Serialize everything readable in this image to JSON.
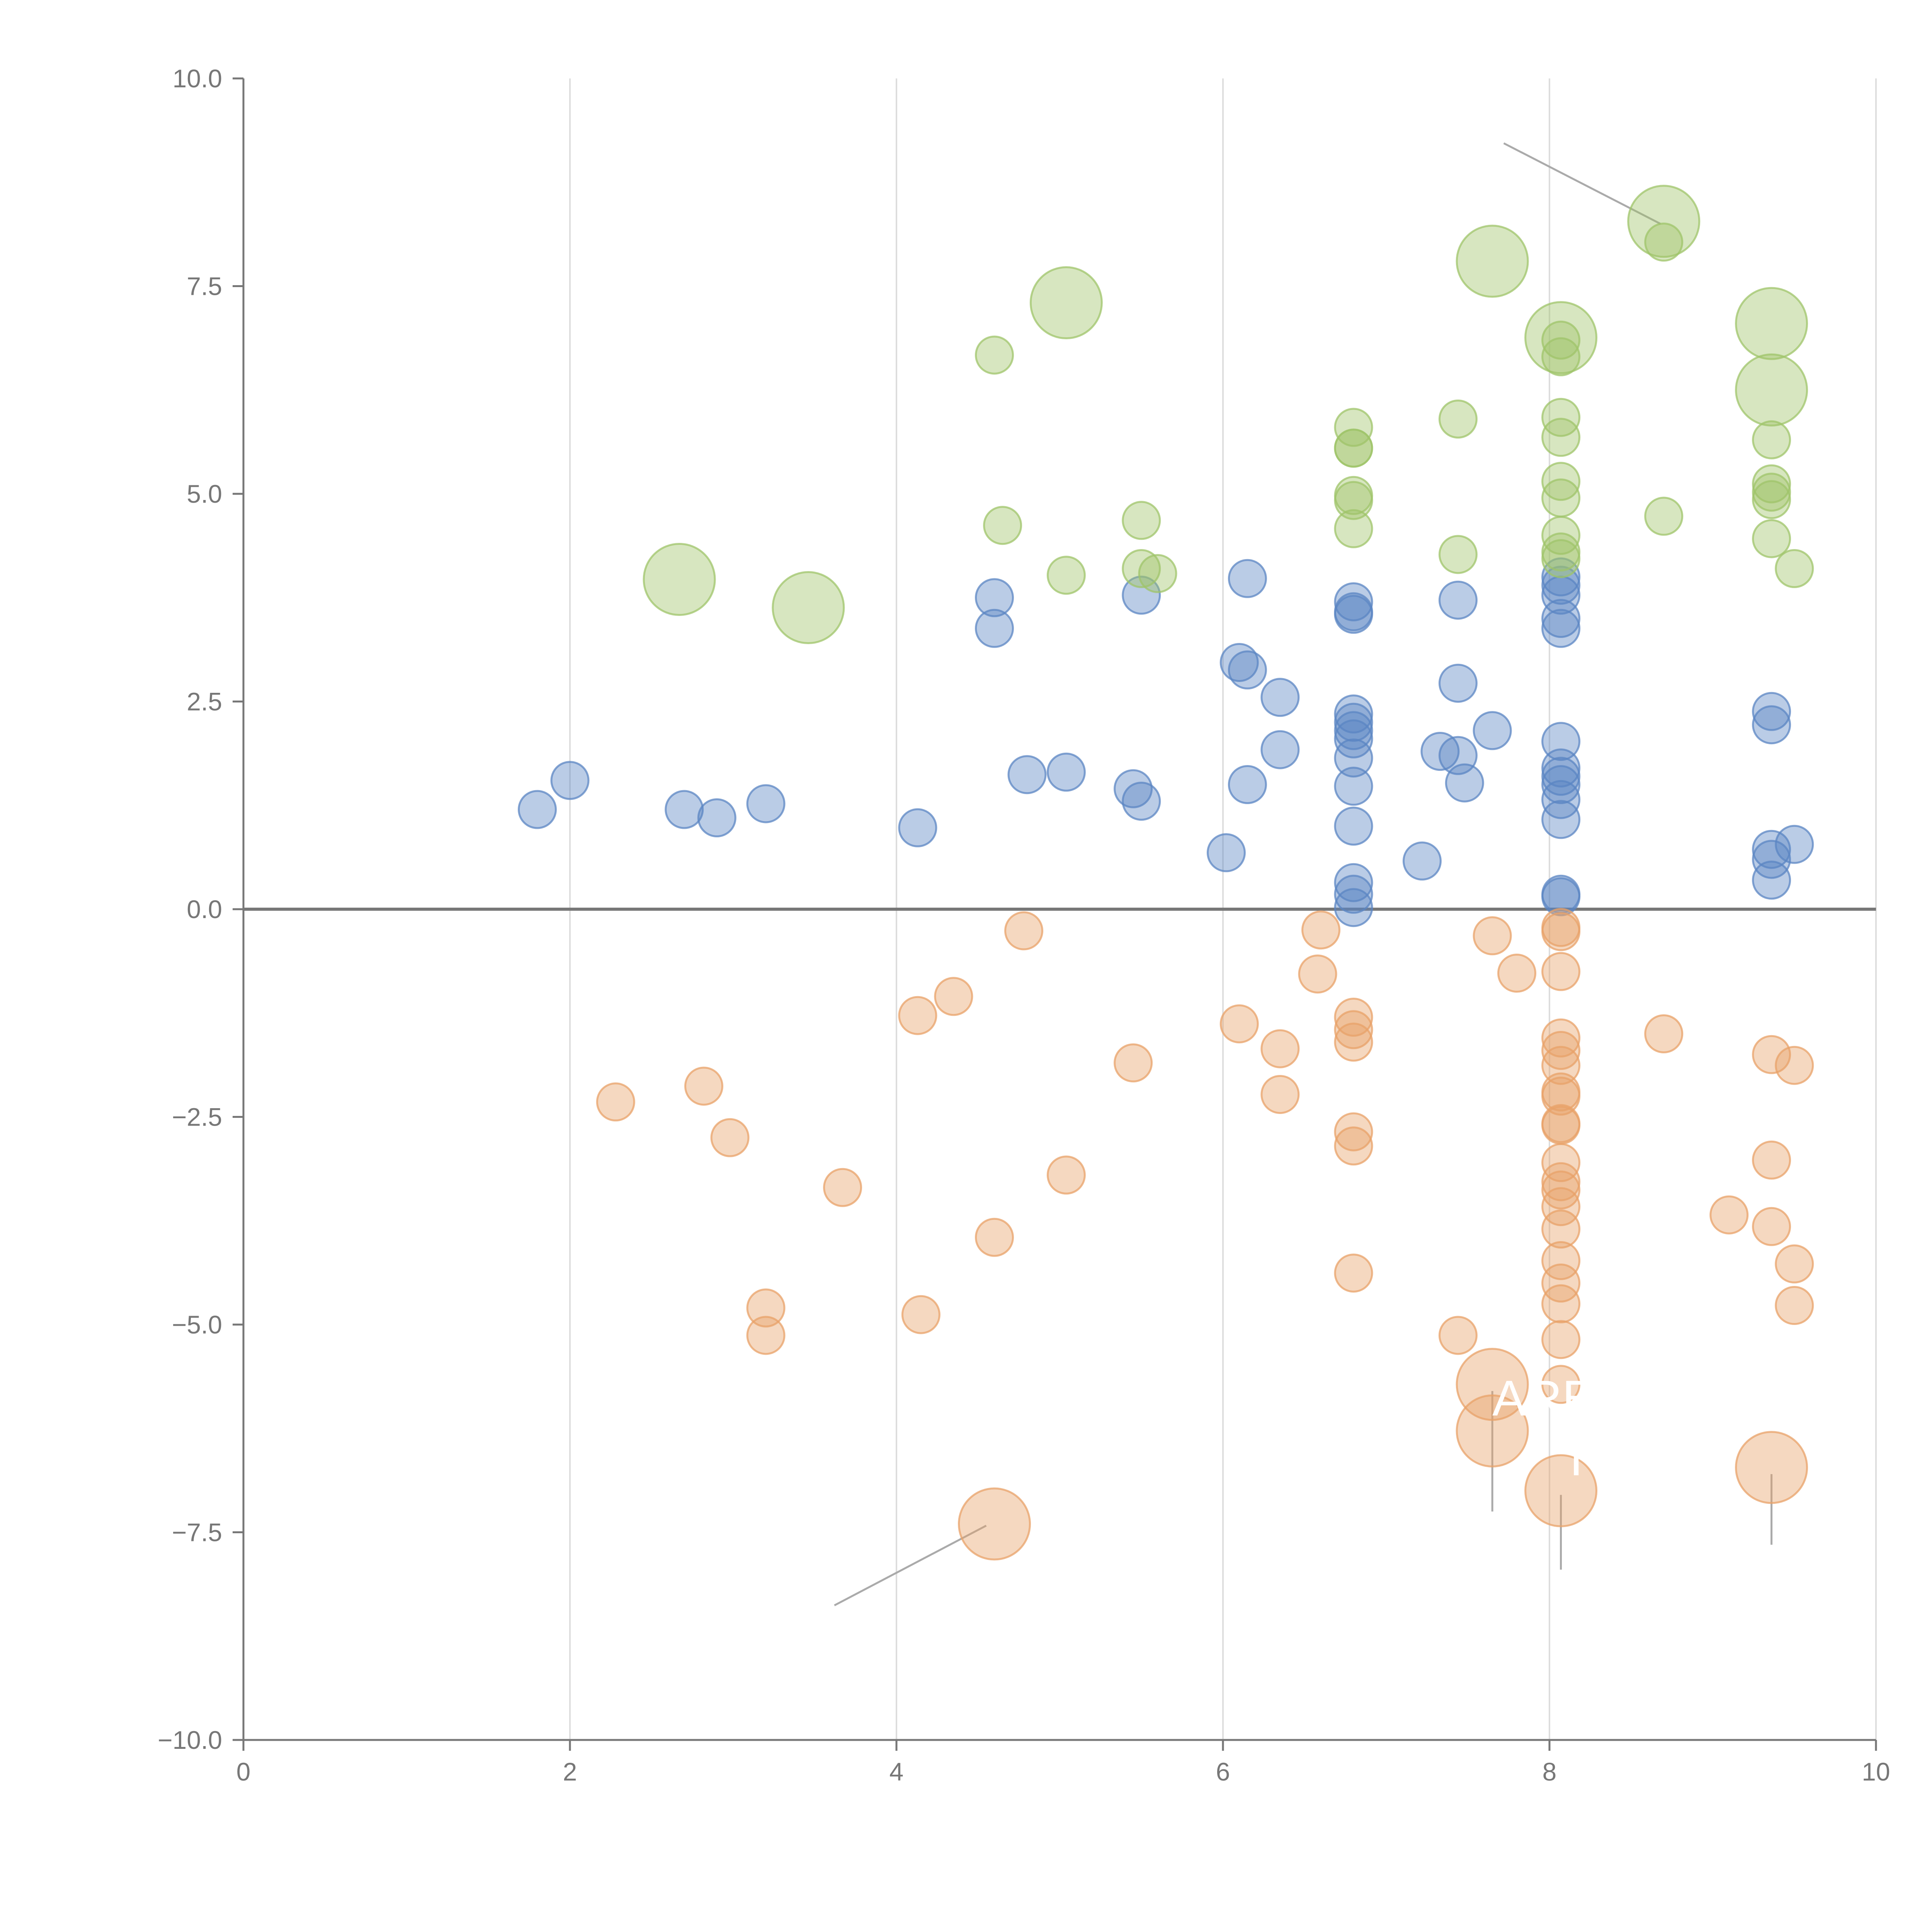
{
  "chart_data": {
    "type": "scatter",
    "title": "",
    "xlabel": "",
    "ylabel": "",
    "xlim": [
      0,
      10
    ],
    "ylim": [
      -10,
      10
    ],
    "grid": "vertical",
    "x_ticks": [
      0,
      2,
      4,
      6,
      8,
      10
    ],
    "x_tick_labels": [
      "0",
      "2",
      "4",
      "6",
      "8",
      "10"
    ],
    "y_ticks": [
      -10,
      -7.5,
      -5,
      -2.5,
      0,
      2.5,
      5,
      7.5,
      10
    ],
    "y_tick_labels": [
      "−10.0",
      "−7.5",
      "−5.0",
      "−2.5",
      "0.0",
      "2.5",
      "5.0",
      "7.5",
      "10.0"
    ],
    "series": [
      {
        "name": "blue",
        "color": "#5b85c3",
        "points": [
          {
            "x": 1.8,
            "y": 1.2,
            "size": 1
          },
          {
            "x": 2.0,
            "y": 1.55,
            "size": 1
          },
          {
            "x": 2.7,
            "y": 1.2,
            "size": 1
          },
          {
            "x": 2.9,
            "y": 1.1,
            "size": 1
          },
          {
            "x": 3.2,
            "y": 1.27,
            "size": 1
          },
          {
            "x": 4.13,
            "y": 0.98,
            "size": 1
          },
          {
            "x": 4.6,
            "y": 3.75,
            "size": 1
          },
          {
            "x": 4.6,
            "y": 3.38,
            "size": 1
          },
          {
            "x": 4.8,
            "y": 1.62,
            "size": 1
          },
          {
            "x": 5.04,
            "y": 1.65,
            "size": 1
          },
          {
            "x": 5.45,
            "y": 1.45,
            "size": 1
          },
          {
            "x": 5.5,
            "y": 1.3,
            "size": 1
          },
          {
            "x": 5.5,
            "y": 3.78,
            "size": 1
          },
          {
            "x": 6.02,
            "y": 0.68,
            "size": 1
          },
          {
            "x": 6.1,
            "y": 2.97,
            "size": 1
          },
          {
            "x": 6.15,
            "y": 2.88,
            "size": 1
          },
          {
            "x": 6.15,
            "y": 3.98,
            "size": 1
          },
          {
            "x": 6.15,
            "y": 1.5,
            "size": 1
          },
          {
            "x": 6.35,
            "y": 2.55,
            "size": 1
          },
          {
            "x": 6.35,
            "y": 1.92,
            "size": 1
          },
          {
            "x": 6.8,
            "y": 3.7,
            "size": 1
          },
          {
            "x": 6.8,
            "y": 3.58,
            "size": 1
          },
          {
            "x": 6.8,
            "y": 3.55,
            "size": 1
          },
          {
            "x": 6.8,
            "y": 2.35,
            "size": 1
          },
          {
            "x": 6.8,
            "y": 2.25,
            "size": 1
          },
          {
            "x": 6.8,
            "y": 2.15,
            "size": 1
          },
          {
            "x": 6.8,
            "y": 2.05,
            "size": 1
          },
          {
            "x": 6.8,
            "y": 1.82,
            "size": 1
          },
          {
            "x": 6.8,
            "y": 1.48,
            "size": 1
          },
          {
            "x": 6.8,
            "y": 1.0,
            "size": 1
          },
          {
            "x": 6.8,
            "y": 0.32,
            "size": 1
          },
          {
            "x": 6.8,
            "y": 0.18,
            "size": 1
          },
          {
            "x": 6.8,
            "y": 0.02,
            "size": 1
          },
          {
            "x": 7.22,
            "y": 0.58,
            "size": 1
          },
          {
            "x": 7.33,
            "y": 1.9,
            "size": 1
          },
          {
            "x": 7.44,
            "y": 2.72,
            "size": 1
          },
          {
            "x": 7.44,
            "y": 3.72,
            "size": 1
          },
          {
            "x": 7.44,
            "y": 1.85,
            "size": 1
          },
          {
            "x": 7.48,
            "y": 1.52,
            "size": 1
          },
          {
            "x": 7.65,
            "y": 2.15,
            "size": 1
          },
          {
            "x": 8.07,
            "y": 4.0,
            "size": 1
          },
          {
            "x": 8.07,
            "y": 3.9,
            "size": 1
          },
          {
            "x": 8.07,
            "y": 3.78,
            "size": 1
          },
          {
            "x": 8.07,
            "y": 3.5,
            "size": 1
          },
          {
            "x": 8.07,
            "y": 3.38,
            "size": 1
          },
          {
            "x": 8.07,
            "y": 2.02,
            "size": 1
          },
          {
            "x": 8.07,
            "y": 1.7,
            "size": 1
          },
          {
            "x": 8.07,
            "y": 1.6,
            "size": 1
          },
          {
            "x": 8.07,
            "y": 1.5,
            "size": 1
          },
          {
            "x": 8.07,
            "y": 1.32,
            "size": 1
          },
          {
            "x": 8.07,
            "y": 1.08,
            "size": 1
          },
          {
            "x": 8.07,
            "y": 0.18,
            "size": 1
          },
          {
            "x": 8.07,
            "y": 0.15,
            "size": 1
          },
          {
            "x": 9.36,
            "y": 2.38,
            "size": 1
          },
          {
            "x": 9.36,
            "y": 2.22,
            "size": 1
          },
          {
            "x": 9.36,
            "y": 0.72,
            "size": 1
          },
          {
            "x": 9.36,
            "y": 0.6,
            "size": 1
          },
          {
            "x": 9.36,
            "y": 0.35,
            "size": 1
          },
          {
            "x": 9.5,
            "y": 0.78,
            "size": 1
          }
        ]
      },
      {
        "name": "green",
        "color": "#9fc46a",
        "points": [
          {
            "x": 2.67,
            "y": 3.97,
            "size": 2
          },
          {
            "x": 3.46,
            "y": 3.63,
            "size": 2
          },
          {
            "x": 4.6,
            "y": 6.67,
            "size": 1
          },
          {
            "x": 4.65,
            "y": 4.62,
            "size": 1
          },
          {
            "x": 5.04,
            "y": 7.3,
            "size": 2
          },
          {
            "x": 5.04,
            "y": 4.02,
            "size": 1
          },
          {
            "x": 5.5,
            "y": 4.68,
            "size": 1
          },
          {
            "x": 5.5,
            "y": 4.1,
            "size": 1
          },
          {
            "x": 5.6,
            "y": 4.04,
            "size": 1
          },
          {
            "x": 6.8,
            "y": 5.8,
            "size": 1
          },
          {
            "x": 6.8,
            "y": 5.55,
            "size": 1
          },
          {
            "x": 6.8,
            "y": 5.55,
            "size": 1
          },
          {
            "x": 6.8,
            "y": 4.98,
            "size": 1
          },
          {
            "x": 6.8,
            "y": 4.92,
            "size": 1
          },
          {
            "x": 6.8,
            "y": 4.58,
            "size": 1
          },
          {
            "x": 7.44,
            "y": 5.9,
            "size": 1
          },
          {
            "x": 7.44,
            "y": 4.27,
            "size": 1
          },
          {
            "x": 7.65,
            "y": 7.8,
            "size": 2
          },
          {
            "x": 8.07,
            "y": 6.88,
            "size": 2
          },
          {
            "x": 8.07,
            "y": 6.85,
            "size": 1
          },
          {
            "x": 8.07,
            "y": 6.65,
            "size": 1
          },
          {
            "x": 8.07,
            "y": 5.92,
            "size": 1
          },
          {
            "x": 8.07,
            "y": 5.68,
            "size": 1
          },
          {
            "x": 8.07,
            "y": 5.15,
            "size": 1
          },
          {
            "x": 8.07,
            "y": 4.95,
            "size": 1
          },
          {
            "x": 8.07,
            "y": 4.5,
            "size": 1
          },
          {
            "x": 8.07,
            "y": 4.3,
            "size": 1
          },
          {
            "x": 8.07,
            "y": 4.22,
            "size": 1
          },
          {
            "x": 8.7,
            "y": 8.28,
            "size": 2
          },
          {
            "x": 8.7,
            "y": 8.03,
            "size": 1
          },
          {
            "x": 8.7,
            "y": 4.73,
            "size": 1
          },
          {
            "x": 9.36,
            "y": 7.05,
            "size": 2
          },
          {
            "x": 9.36,
            "y": 6.25,
            "size": 2
          },
          {
            "x": 9.36,
            "y": 5.65,
            "size": 1
          },
          {
            "x": 9.36,
            "y": 5.12,
            "size": 1
          },
          {
            "x": 9.36,
            "y": 5.02,
            "size": 1
          },
          {
            "x": 9.36,
            "y": 4.93,
            "size": 1
          },
          {
            "x": 9.36,
            "y": 4.46,
            "size": 1
          },
          {
            "x": 9.5,
            "y": 4.1,
            "size": 1
          }
        ]
      },
      {
        "name": "orange",
        "color": "#e8a268",
        "points": [
          {
            "x": 2.28,
            "y": -2.32,
            "size": 1
          },
          {
            "x": 2.82,
            "y": -2.13,
            "size": 1
          },
          {
            "x": 2.98,
            "y": -2.75,
            "size": 1
          },
          {
            "x": 3.2,
            "y": -4.8,
            "size": 1
          },
          {
            "x": 3.2,
            "y": -5.13,
            "size": 1
          },
          {
            "x": 3.67,
            "y": -3.35,
            "size": 1
          },
          {
            "x": 4.13,
            "y": -1.28,
            "size": 1
          },
          {
            "x": 4.15,
            "y": -4.88,
            "size": 1
          },
          {
            "x": 4.35,
            "y": -1.05,
            "size": 1
          },
          {
            "x": 4.6,
            "y": -3.95,
            "size": 1
          },
          {
            "x": 4.6,
            "y": -7.4,
            "size": 2
          },
          {
            "x": 4.78,
            "y": -0.26,
            "size": 1
          },
          {
            "x": 5.04,
            "y": -3.2,
            "size": 1
          },
          {
            "x": 5.45,
            "y": -1.85,
            "size": 1
          },
          {
            "x": 6.1,
            "y": -1.38,
            "size": 1
          },
          {
            "x": 6.35,
            "y": -1.68,
            "size": 1
          },
          {
            "x": 6.35,
            "y": -2.23,
            "size": 1
          },
          {
            "x": 6.58,
            "y": -0.78,
            "size": 1
          },
          {
            "x": 6.6,
            "y": -0.25,
            "size": 1
          },
          {
            "x": 6.8,
            "y": -1.3,
            "size": 1
          },
          {
            "x": 6.8,
            "y": -1.45,
            "size": 1
          },
          {
            "x": 6.8,
            "y": -1.6,
            "size": 1
          },
          {
            "x": 6.8,
            "y": -2.68,
            "size": 1
          },
          {
            "x": 6.8,
            "y": -2.85,
            "size": 1
          },
          {
            "x": 6.8,
            "y": -4.38,
            "size": 1
          },
          {
            "x": 7.44,
            "y": -5.13,
            "size": 1
          },
          {
            "x": 7.65,
            "y": -5.72,
            "size": 2
          },
          {
            "x": 7.65,
            "y": -6.28,
            "size": 2
          },
          {
            "x": 7.65,
            "y": -0.32,
            "size": 1
          },
          {
            "x": 7.8,
            "y": -0.77,
            "size": 1
          },
          {
            "x": 8.07,
            "y": -0.22,
            "size": 1
          },
          {
            "x": 8.07,
            "y": -0.27,
            "size": 1
          },
          {
            "x": 8.07,
            "y": -0.75,
            "size": 1
          },
          {
            "x": 8.07,
            "y": -1.55,
            "size": 1
          },
          {
            "x": 8.07,
            "y": -1.7,
            "size": 1
          },
          {
            "x": 8.07,
            "y": -1.88,
            "size": 1
          },
          {
            "x": 8.07,
            "y": -2.2,
            "size": 1
          },
          {
            "x": 8.07,
            "y": -2.25,
            "size": 1
          },
          {
            "x": 8.07,
            "y": -2.58,
            "size": 1
          },
          {
            "x": 8.07,
            "y": -2.6,
            "size": 1
          },
          {
            "x": 8.07,
            "y": -3.05,
            "size": 1
          },
          {
            "x": 8.07,
            "y": -3.28,
            "size": 1
          },
          {
            "x": 8.07,
            "y": -3.38,
            "size": 1
          },
          {
            "x": 8.07,
            "y": -3.58,
            "size": 1
          },
          {
            "x": 8.07,
            "y": -3.85,
            "size": 1
          },
          {
            "x": 8.07,
            "y": -4.23,
            "size": 1
          },
          {
            "x": 8.07,
            "y": -4.5,
            "size": 1
          },
          {
            "x": 8.07,
            "y": -4.75,
            "size": 1
          },
          {
            "x": 8.07,
            "y": -5.18,
            "size": 1
          },
          {
            "x": 8.07,
            "y": -5.72,
            "size": 1
          },
          {
            "x": 8.07,
            "y": -7.0,
            "size": 2
          },
          {
            "x": 8.7,
            "y": -1.5,
            "size": 1
          },
          {
            "x": 9.1,
            "y": -3.68,
            "size": 1
          },
          {
            "x": 9.36,
            "y": -1.75,
            "size": 1
          },
          {
            "x": 9.36,
            "y": -3.02,
            "size": 1
          },
          {
            "x": 9.36,
            "y": -3.82,
            "size": 1
          },
          {
            "x": 9.36,
            "y": -6.72,
            "size": 2
          },
          {
            "x": 9.5,
            "y": -1.88,
            "size": 1
          },
          {
            "x": 9.5,
            "y": -4.27,
            "size": 1
          },
          {
            "x": 9.5,
            "y": -4.77,
            "size": 1
          }
        ]
      }
    ],
    "annotations": [
      {
        "text": "ARE",
        "x": 7.65,
        "y": -6.28,
        "label_x": 7.65,
        "label_y": -7.25
      },
      {
        "text": "TE",
        "x": 8.07,
        "y": -7.0,
        "label_x": 8.07,
        "label_y": -7.95
      }
    ],
    "leader_lines": [
      {
        "x1": 8.68,
        "y1": 8.25,
        "x2": 7.72,
        "y2": 9.22
      },
      {
        "x1": 4.55,
        "y1": -7.42,
        "x2": 3.62,
        "y2": -8.38
      },
      {
        "x1": 7.65,
        "y1": -5.8,
        "x2": 7.65,
        "y2": -7.25
      },
      {
        "x1": 8.07,
        "y1": -7.05,
        "x2": 8.07,
        "y2": -7.95
      },
      {
        "x1": 9.36,
        "y1": -6.8,
        "x2": 9.36,
        "y2": -7.65
      }
    ]
  }
}
